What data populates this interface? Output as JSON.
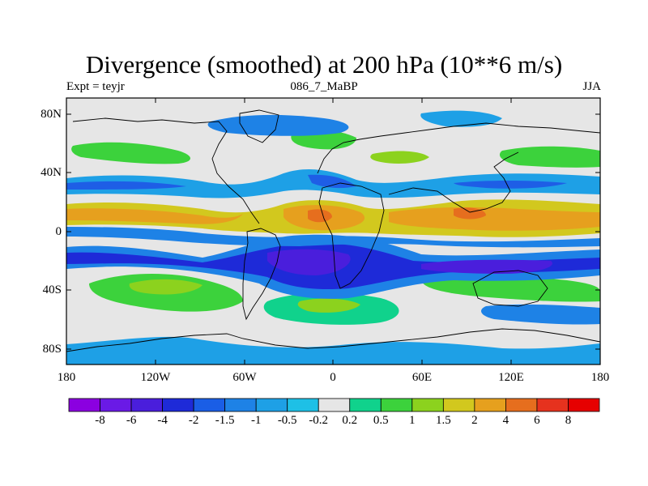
{
  "title": "Divergence (smoothed) at 200 hPa (10**6 m/s)",
  "subtitle_left": "Expt = teyjr",
  "subtitle_center": "086_7_MaBP",
  "subtitle_right": "JJA",
  "lat_labels": [
    "80N",
    "40N",
    "0",
    "40S",
    "80S"
  ],
  "lon_labels": [
    "180",
    "120W",
    "60W",
    "0",
    "60E",
    "120E",
    "180"
  ],
  "colorbar_labels": [
    "-8",
    "-6",
    "-4",
    "-2",
    "-1.5",
    "-1",
    "-0.5",
    "-0.2",
    "0.2",
    "0.5",
    "1",
    "1.5",
    "2",
    "4",
    "6",
    "8"
  ],
  "colors": {
    "c0": "#8b00e0",
    "c1": "#6a1ae6",
    "c2": "#4a1edc",
    "c3": "#1e2ad8",
    "c4": "#1a5ee6",
    "c5": "#1e82e6",
    "c6": "#1ea0e6",
    "c7": "#1ec0e6",
    "c8": "#e6e6e6",
    "c9": "#10d28c",
    "c10": "#3cd23c",
    "c11": "#8cd21e",
    "c12": "#d2c81e",
    "c13": "#e6a01e",
    "c14": "#e66e1e",
    "c15": "#e6321e",
    "c16": "#e60000"
  }
}
